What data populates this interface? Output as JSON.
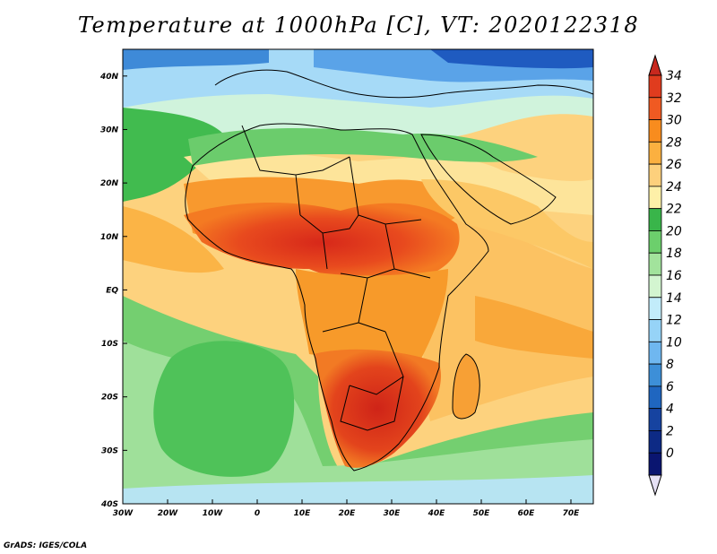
{
  "title": "Temperature at 1000hPa [C], VT: 2020122318",
  "credit": "GrADS: IGES/COLA",
  "variable": "Temperature",
  "level": "1000hPa",
  "units": "C",
  "valid_time": "2020122318",
  "map": {
    "lon_range": [
      -30,
      75
    ],
    "lat_range": [
      -40,
      45
    ],
    "lon_ticks": [
      {
        "lon": -30,
        "label": "30W"
      },
      {
        "lon": -20,
        "label": "20W"
      },
      {
        "lon": -10,
        "label": "10W"
      },
      {
        "lon": 0,
        "label": "0"
      },
      {
        "lon": 10,
        "label": "10E"
      },
      {
        "lon": 20,
        "label": "20E"
      },
      {
        "lon": 30,
        "label": "30E"
      },
      {
        "lon": 40,
        "label": "40E"
      },
      {
        "lon": 50,
        "label": "50E"
      },
      {
        "lon": 60,
        "label": "60E"
      },
      {
        "lon": 70,
        "label": "70E"
      }
    ],
    "lat_ticks": [
      {
        "lat": 40,
        "label": "40N"
      },
      {
        "lat": 30,
        "label": "30N"
      },
      {
        "lat": 20,
        "label": "20N"
      },
      {
        "lat": 10,
        "label": "10N"
      },
      {
        "lat": 0,
        "label": "EQ"
      },
      {
        "lat": -10,
        "label": "10S"
      },
      {
        "lat": -20,
        "label": "20S"
      },
      {
        "lat": -30,
        "label": "30S"
      },
      {
        "lat": -40,
        "label": "40S"
      }
    ]
  },
  "colorbar": {
    "labels": [
      "34",
      "32",
      "30",
      "28",
      "26",
      "24",
      "22",
      "20",
      "18",
      "16",
      "14",
      "12",
      "10",
      "8",
      "6",
      "4",
      "2",
      "0"
    ],
    "colors": [
      "#e03c1e",
      "#f05a22",
      "#f88c1e",
      "#fbb040",
      "#fdd07c",
      "#fef0a8",
      "#39b54a",
      "#6ccf6c",
      "#a2e39c",
      "#d3f5d0",
      "#c2ecfa",
      "#96d3f7",
      "#6fb7f0",
      "#3d8fd8",
      "#1f66c0",
      "#1643a0",
      "#0d2a85",
      "#0a1570"
    ],
    "over_color": "#c8281e",
    "under_color": "#e6e1f5"
  }
}
